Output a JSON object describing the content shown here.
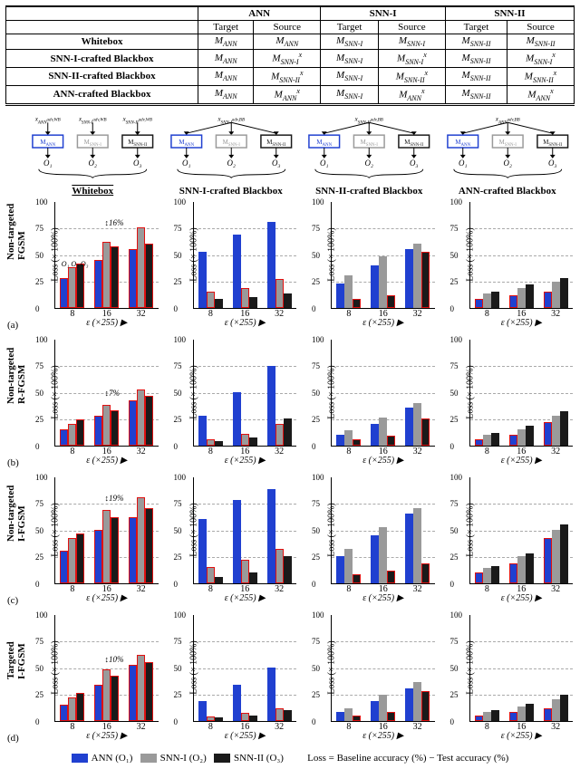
{
  "table": {
    "supercols": [
      "",
      "ANN",
      "SNN-I",
      "SNN-II"
    ],
    "subcols": [
      "Target",
      "Source"
    ],
    "rows": [
      {
        "label": "Whitebox",
        "cells": [
          "M_ANN",
          "M_ANN",
          "M_SNN-I",
          "M_SNN-I",
          "M_SNN-II",
          "M_SNN-II"
        ]
      },
      {
        "label": "SNN-I-crafted Blackbox",
        "cells": [
          "M_ANN",
          "M_SNN-I^x",
          "M_SNN-I",
          "M_SNN-I^x",
          "M_SNN-II",
          "M_SNN-I^x"
        ]
      },
      {
        "label": "SNN-II-crafted Blackbox",
        "cells": [
          "M_ANN",
          "M_SNN-II^x",
          "M_SNN-I",
          "M_SNN-II^x",
          "M_SNN-II",
          "M_SNN-II^x"
        ]
      },
      {
        "label": "ANN-crafted Blackbox",
        "cells": [
          "M_ANN",
          "M_ANN^x",
          "M_SNN-I",
          "M_ANN^x",
          "M_SNN-II",
          "M_ANN^x"
        ]
      }
    ]
  },
  "schematic": {
    "boxes": [
      "M_ANN",
      "M_SNN-I",
      "M_SNN-II"
    ],
    "outs": [
      "O₁",
      "O₂",
      "O₃"
    ],
    "wb_inputs": [
      "x_ANN^{adv,WB}",
      "x_SNN-I^{adv,WB}",
      "x_SNN-II^{adv,WB}"
    ],
    "bb_inputs": [
      "x_SNN-I^{adv,BB}",
      "x_SNN-II^{adv,BB}",
      "x_ANN^{adv,BB}"
    ],
    "col_titles": [
      "Whitebox",
      "SNN-I-crafted Blackbox",
      "SNN-II-crafted Blackbox",
      "ANN-crafted Blackbox"
    ]
  },
  "axes": {
    "ylim": 100,
    "yticks": [
      0,
      25,
      50,
      75,
      100
    ],
    "xvals": [
      "8",
      "16",
      "32"
    ],
    "ylabel": "Loss (× 100%)",
    "xlabel": "ε (×255) ▶"
  },
  "colors": {
    "ann": "#2040d0",
    "snn1": "#9a9a9a",
    "snn2": "#1a1a1a",
    "highlight": "#e01010",
    "grid": "#bfbfbf",
    "boxblue": "#2040d0",
    "boxgray": "#9a9a9a",
    "boxblack": "#1a1a1a"
  },
  "rows": [
    {
      "tag": "(a)",
      "label": "Non-targeted\nFGSM",
      "anno": "16%",
      "anno_col": 0,
      "anno_xy": [
        48,
        18
      ]
    },
    {
      "tag": "(b)",
      "label": "Non-targeted\nR-FGSM",
      "anno": "7%",
      "anno_col": 0,
      "anno_xy": [
        48,
        54
      ]
    },
    {
      "tag": "(c)",
      "label": "Non-targeted\nI-FGSM",
      "anno": "19%",
      "anno_col": 0,
      "anno_xy": [
        48,
        18
      ]
    },
    {
      "tag": "(d)",
      "label": "Targeted\nI-FGSM",
      "anno": "10%",
      "anno_col": 0,
      "anno_xy": [
        48,
        44
      ]
    }
  ],
  "highlight": [
    [
      0,
      0
    ],
    [
      0,
      1
    ],
    [
      0,
      2
    ],
    [
      0,
      3
    ]
  ],
  "data": [
    [
      [
        [
          28,
          38,
          41
        ],
        [
          45,
          62,
          57
        ],
        [
          55,
          75,
          60
        ]
      ],
      [
        [
          52,
          15,
          8
        ],
        [
          68,
          18,
          10
        ],
        [
          80,
          27,
          13
        ]
      ],
      [
        [
          23,
          30,
          8
        ],
        [
          40,
          48,
          12
        ],
        [
          55,
          60,
          52
        ]
      ],
      [
        [
          8,
          13,
          15
        ],
        [
          12,
          18,
          22
        ],
        [
          15,
          24,
          28
        ]
      ]
    ],
    [
      [
        [
          15,
          20,
          24
        ],
        [
          28,
          38,
          33
        ],
        [
          42,
          52,
          46
        ]
      ],
      [
        [
          28,
          6,
          4
        ],
        [
          50,
          11,
          7
        ],
        [
          74,
          20,
          25
        ]
      ],
      [
        [
          10,
          14,
          6
        ],
        [
          20,
          26,
          9
        ],
        [
          35,
          40,
          25
        ]
      ],
      [
        [
          6,
          10,
          12
        ],
        [
          10,
          15,
          18
        ],
        [
          22,
          28,
          32
        ]
      ]
    ],
    [
      [
        [
          30,
          42,
          46
        ],
        [
          50,
          68,
          62
        ],
        [
          62,
          80,
          70
        ]
      ],
      [
        [
          60,
          15,
          6
        ],
        [
          78,
          22,
          10
        ],
        [
          88,
          32,
          25
        ]
      ],
      [
        [
          25,
          32,
          8
        ],
        [
          45,
          52,
          12
        ],
        [
          65,
          70,
          18
        ]
      ],
      [
        [
          10,
          14,
          16
        ],
        [
          18,
          25,
          28
        ],
        [
          42,
          50,
          55
        ]
      ]
    ],
    [
      [
        [
          15,
          22,
          26
        ],
        [
          34,
          48,
          42
        ],
        [
          52,
          62,
          55
        ]
      ],
      [
        [
          18,
          4,
          3
        ],
        [
          34,
          7,
          5
        ],
        [
          50,
          12,
          10
        ]
      ],
      [
        [
          8,
          12,
          5
        ],
        [
          18,
          24,
          8
        ],
        [
          30,
          36,
          28
        ]
      ],
      [
        [
          5,
          8,
          10
        ],
        [
          8,
          13,
          16
        ],
        [
          12,
          20,
          24
        ]
      ]
    ]
  ],
  "legend": {
    "items": [
      {
        "label": "ANN (O₁)",
        "color": "#2040d0"
      },
      {
        "label": "SNN-I  (O₂)",
        "color": "#9a9a9a"
      },
      {
        "label": "SNN-II (O₃)",
        "color": "#1a1a1a"
      }
    ],
    "lossdef": "Loss = Baseline accuracy (%) − Test accuracy (%)"
  }
}
